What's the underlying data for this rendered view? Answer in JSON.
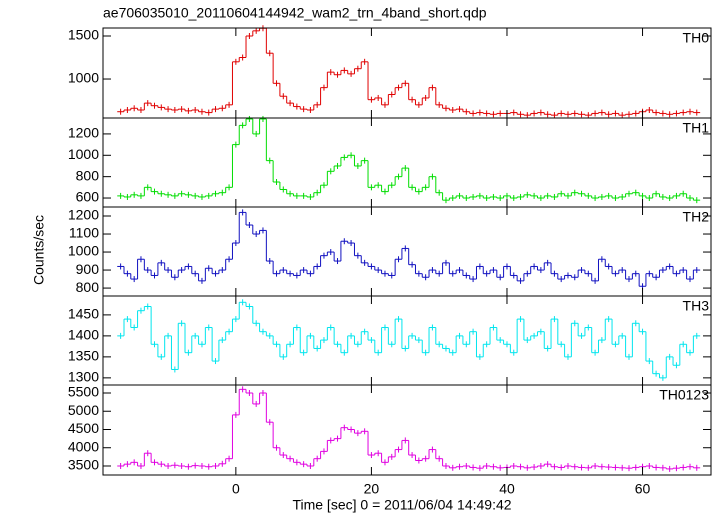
{
  "chart_data": {
    "type": "step",
    "title": "ae706035010_20110604144942_wam2_trn_4band_short.qdp",
    "xlabel": "Time [sec] 0 = 2011/06/04 14:49:42",
    "ylabel": "Counts/sec",
    "xlim": [
      -19.6,
      70.1
    ],
    "xticks": [
      0,
      20,
      40,
      60
    ],
    "x": [
      -17,
      -16,
      -15,
      -14,
      -13,
      -12,
      -11,
      -10,
      -9,
      -8,
      -7,
      -6,
      -5,
      -4,
      -3,
      -2,
      -1,
      0,
      1,
      2,
      3,
      4,
      5,
      6,
      7,
      8,
      9,
      10,
      11,
      12,
      13,
      14,
      15,
      16,
      17,
      18,
      19,
      20,
      21,
      22,
      23,
      24,
      25,
      26,
      27,
      28,
      29,
      30,
      31,
      32,
      33,
      34,
      35,
      36,
      37,
      38,
      39,
      40,
      41,
      42,
      43,
      44,
      45,
      46,
      47,
      48,
      49,
      50,
      51,
      52,
      53,
      54,
      55,
      56,
      57,
      58,
      59,
      60,
      61,
      62,
      63,
      64,
      65,
      66,
      67,
      68
    ],
    "panels": [
      {
        "name": "TH0",
        "color": "#e00000",
        "ylim": [
          547,
          1593
        ],
        "yticks": [
          1000,
          1500
        ],
        "values": [
          620,
          640,
          660,
          640,
          720,
          690,
          670,
          650,
          640,
          650,
          630,
          640,
          620,
          610,
          650,
          660,
          700,
          1200,
          1250,
          1500,
          1560,
          1590,
          1300,
          950,
          800,
          720,
          680,
          650,
          640,
          700,
          900,
          1080,
          1050,
          1100,
          1060,
          1120,
          1200,
          760,
          780,
          700,
          820,
          900,
          950,
          760,
          700,
          780,
          900,
          700,
          660,
          640,
          650,
          620,
          600,
          610,
          600,
          590,
          600,
          600,
          610,
          590,
          580,
          600,
          610,
          590,
          580,
          600,
          590,
          600,
          590,
          580,
          600,
          610,
          590,
          600,
          580,
          590,
          600,
          620,
          640,
          610,
          600,
          590,
          600,
          610,
          620,
          610
        ]
      },
      {
        "name": "TH1",
        "color": "#00dd00",
        "ylim": [
          516,
          1349
        ],
        "yticks": [
          600,
          800,
          1000,
          1200
        ],
        "values": [
          620,
          610,
          630,
          620,
          700,
          660,
          640,
          630,
          620,
          640,
          630,
          620,
          610,
          620,
          640,
          650,
          700,
          1100,
          1280,
          1340,
          1200,
          1340,
          950,
          750,
          680,
          640,
          620,
          620,
          610,
          650,
          720,
          850,
          900,
          980,
          1000,
          900,
          950,
          700,
          720,
          660,
          720,
          800,
          880,
          700,
          660,
          700,
          800,
          650,
          580,
          600,
          620,
          600,
          610,
          620,
          600,
          610,
          600,
          620,
          600,
          610,
          630,
          620,
          600,
          620,
          610,
          640,
          620,
          650,
          640,
          620,
          600,
          610,
          620,
          600,
          610,
          640,
          650,
          620,
          600,
          640,
          610,
          600,
          620,
          640,
          600,
          580
        ]
      },
      {
        "name": "TH2",
        "color": "#1010c0",
        "ylim": [
          756,
          1250
        ],
        "yticks": [
          800,
          900,
          1000,
          1100,
          1200
        ],
        "values": [
          920,
          880,
          850,
          960,
          900,
          870,
          940,
          900,
          860,
          900,
          920,
          880,
          840,
          910,
          880,
          900,
          960,
          1050,
          1220,
          1150,
          1100,
          1120,
          950,
          880,
          900,
          880,
          870,
          900,
          880,
          920,
          980,
          1000,
          950,
          1060,
          1050,
          980,
          940,
          920,
          900,
          880,
          870,
          960,
          1020,
          930,
          880,
          860,
          900,
          880,
          940,
          880,
          900,
          870,
          850,
          920,
          880,
          900,
          860,
          920,
          870,
          840,
          880,
          920,
          900,
          940,
          880,
          850,
          870,
          860,
          900,
          880,
          840,
          960,
          920,
          880,
          900,
          850,
          880,
          810,
          880,
          860,
          900,
          920,
          880,
          900,
          850,
          900
        ]
      },
      {
        "name": "TH3",
        "color": "#00e5ee",
        "ylim": [
          1283,
          1495
        ],
        "yticks": [
          1300,
          1350,
          1400,
          1450
        ],
        "values": [
          1400,
          1440,
          1420,
          1460,
          1470,
          1380,
          1350,
          1400,
          1320,
          1430,
          1360,
          1400,
          1380,
          1420,
          1340,
          1390,
          1410,
          1440,
          1480,
          1470,
          1430,
          1410,
          1400,
          1380,
          1350,
          1380,
          1420,
          1360,
          1400,
          1370,
          1390,
          1420,
          1380,
          1360,
          1400,
          1380,
          1410,
          1390,
          1360,
          1420,
          1380,
          1440,
          1370,
          1400,
          1390,
          1360,
          1420,
          1380,
          1370,
          1360,
          1400,
          1380,
          1410,
          1350,
          1380,
          1420,
          1390,
          1380,
          1360,
          1440,
          1390,
          1400,
          1410,
          1370,
          1440,
          1380,
          1350,
          1430,
          1400,
          1420,
          1360,
          1390,
          1440,
          1380,
          1400,
          1350,
          1430,
          1410,
          1340,
          1310,
          1300,
          1350,
          1330,
          1380,
          1360,
          1400
        ]
      },
      {
        "name": "TH0123",
        "color": "#e000e0",
        "ylim": [
          3253,
          5719
        ],
        "yticks": [
          3500,
          4000,
          4500,
          5000,
          5500
        ],
        "values": [
          3500,
          3550,
          3600,
          3500,
          3850,
          3600,
          3550,
          3500,
          3520,
          3500,
          3480,
          3510,
          3500,
          3480,
          3500,
          3560,
          3700,
          4900,
          5600,
          5500,
          5200,
          5500,
          4700,
          4000,
          3800,
          3700,
          3600,
          3550,
          3500,
          3700,
          3900,
          4200,
          4250,
          4550,
          4500,
          4400,
          4450,
          3800,
          3850,
          3600,
          3750,
          3950,
          4200,
          3800,
          3650,
          3700,
          3950,
          3700,
          3500,
          3450,
          3480,
          3500,
          3460,
          3440,
          3500,
          3480,
          3450,
          3460,
          3500,
          3480,
          3450,
          3470,
          3500,
          3550,
          3480,
          3460,
          3500,
          3480,
          3460,
          3450,
          3500,
          3480,
          3470,
          3460,
          3450,
          3440,
          3460,
          3480,
          3500,
          3460,
          3450,
          3420,
          3440,
          3460,
          3480,
          3450
        ]
      }
    ]
  }
}
